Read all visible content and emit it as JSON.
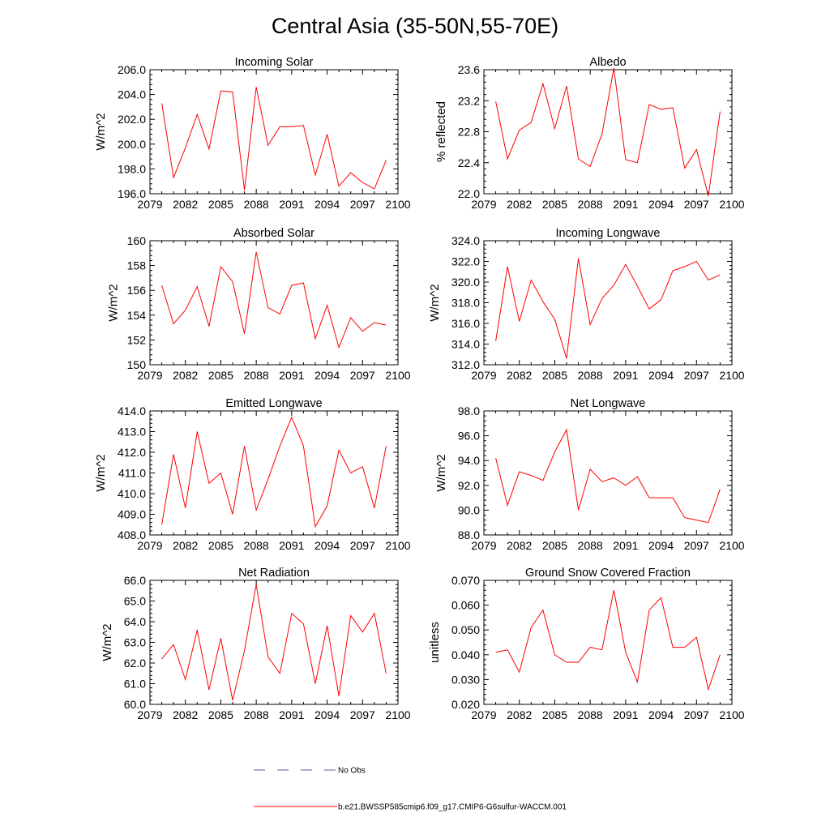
{
  "title": "Central Asia (35-50N,55-70E)",
  "legend": [
    {
      "label": "No Obs",
      "color": "#5a5aa0",
      "dash": true
    },
    {
      "label": "b.e21.BWSSP585cmip6.f09_g17.CMIP6-G6sulfur-WACCM.001",
      "color": "#ff0000",
      "dash": false
    }
  ],
  "chart_data": [
    {
      "type": "line",
      "title": "Incoming Solar",
      "ylabel": "W/m^2",
      "xlim": [
        2079,
        2100
      ],
      "xticks": [
        "2079",
        "2082",
        "2085",
        "2088",
        "2091",
        "2094",
        "2097",
        "2100"
      ],
      "ylim": [
        196.0,
        206.0
      ],
      "yticks": [
        "196.0",
        "198.0",
        "200.0",
        "202.0",
        "204.0",
        "206.0"
      ],
      "series": [
        {
          "color": "#ff0000",
          "x": [
            2080,
            2081,
            2082,
            2083,
            2084,
            2085,
            2086,
            2087,
            2088,
            2089,
            2090,
            2091,
            2092,
            2093,
            2094,
            2095,
            2096,
            2097,
            2098,
            2099
          ],
          "y": [
            203.3,
            197.3,
            199.7,
            202.4,
            199.6,
            204.3,
            204.2,
            196.3,
            204.6,
            199.9,
            201.4,
            201.4,
            201.5,
            197.5,
            200.8,
            196.6,
            197.7,
            196.9,
            196.4,
            198.7
          ]
        }
      ]
    },
    {
      "type": "line",
      "title": "Albedo",
      "ylabel": "% reflected",
      "xlim": [
        2079,
        2100
      ],
      "xticks": [
        "2079",
        "2082",
        "2085",
        "2088",
        "2091",
        "2094",
        "2097",
        "2100"
      ],
      "ylim": [
        22.0,
        23.6
      ],
      "yticks": [
        "22.0",
        "22.4",
        "22.8",
        "23.2",
        "23.6"
      ],
      "series": [
        {
          "color": "#ff0000",
          "x": [
            2080,
            2081,
            2082,
            2083,
            2084,
            2085,
            2086,
            2087,
            2088,
            2089,
            2090,
            2091,
            2092,
            2093,
            2094,
            2095,
            2096,
            2097,
            2098,
            2099
          ],
          "y": [
            23.19,
            22.45,
            22.82,
            22.92,
            23.42,
            22.84,
            23.39,
            22.45,
            22.35,
            22.77,
            23.62,
            22.44,
            22.4,
            23.15,
            23.09,
            23.11,
            22.33,
            22.57,
            21.97,
            23.06
          ]
        }
      ]
    },
    {
      "type": "line",
      "title": "Absorbed Solar",
      "ylabel": "W/m^2",
      "xlim": [
        2079,
        2100
      ],
      "xticks": [
        "2079",
        "2082",
        "2085",
        "2088",
        "2091",
        "2094",
        "2097",
        "2100"
      ],
      "ylim": [
        150,
        160
      ],
      "yticks": [
        "150",
        "152",
        "154",
        "156",
        "158",
        "160"
      ],
      "series": [
        {
          "color": "#ff0000",
          "x": [
            2080,
            2081,
            2082,
            2083,
            2084,
            2085,
            2086,
            2087,
            2088,
            2089,
            2090,
            2091,
            2092,
            2093,
            2094,
            2095,
            2096,
            2097,
            2098,
            2099
          ],
          "y": [
            156.4,
            153.3,
            154.4,
            156.3,
            153.1,
            157.9,
            156.7,
            152.5,
            159.1,
            154.6,
            154.1,
            156.4,
            156.6,
            152.1,
            154.8,
            151.4,
            153.8,
            152.7,
            153.4,
            153.2
          ]
        }
      ]
    },
    {
      "type": "line",
      "title": "Incoming Longwave",
      "ylabel": "W/m^2",
      "xlim": [
        2079,
        2100
      ],
      "xticks": [
        "2079",
        "2082",
        "2085",
        "2088",
        "2091",
        "2094",
        "2097",
        "2100"
      ],
      "ylim": [
        312.0,
        324.0
      ],
      "yticks": [
        "312.0",
        "314.0",
        "316.0",
        "318.0",
        "320.0",
        "322.0",
        "324.0"
      ],
      "series": [
        {
          "color": "#ff0000",
          "x": [
            2080,
            2081,
            2082,
            2083,
            2084,
            2085,
            2086,
            2087,
            2088,
            2089,
            2090,
            2091,
            2092,
            2093,
            2094,
            2095,
            2096,
            2097,
            2098,
            2099
          ],
          "y": [
            314.3,
            321.5,
            316.2,
            320.2,
            318.1,
            316.4,
            312.6,
            322.3,
            315.9,
            318.4,
            319.7,
            321.7,
            319.6,
            317.4,
            318.3,
            321.1,
            321.5,
            322.0,
            320.2,
            320.7
          ]
        }
      ]
    },
    {
      "type": "line",
      "title": "Emitted Longwave",
      "ylabel": "W/m^2",
      "xlim": [
        2079,
        2100
      ],
      "xticks": [
        "2079",
        "2082",
        "2085",
        "2088",
        "2091",
        "2094",
        "2097",
        "2100"
      ],
      "ylim": [
        408.0,
        414.0
      ],
      "yticks": [
        "408.0",
        "409.0",
        "410.0",
        "411.0",
        "412.0",
        "413.0",
        "414.0"
      ],
      "series": [
        {
          "color": "#ff0000",
          "x": [
            2080,
            2081,
            2082,
            2083,
            2084,
            2085,
            2086,
            2087,
            2088,
            2089,
            2090,
            2091,
            2092,
            2093,
            2094,
            2095,
            2096,
            2097,
            2098,
            2099
          ],
          "y": [
            408.5,
            411.9,
            409.3,
            413.0,
            410.5,
            411.0,
            409.0,
            412.3,
            409.2,
            410.7,
            412.3,
            413.7,
            412.3,
            408.4,
            409.4,
            412.1,
            411.0,
            411.3,
            409.3,
            412.3
          ]
        }
      ]
    },
    {
      "type": "line",
      "title": "Net Longwave",
      "ylabel": "W/m^2",
      "xlim": [
        2079,
        2100
      ],
      "xticks": [
        "2079",
        "2082",
        "2085",
        "2088",
        "2091",
        "2094",
        "2097",
        "2100"
      ],
      "ylim": [
        88.0,
        98.0
      ],
      "yticks": [
        "88.0",
        "90.0",
        "92.0",
        "94.0",
        "96.0",
        "98.0"
      ],
      "series": [
        {
          "color": "#ff0000",
          "x": [
            2080,
            2081,
            2082,
            2083,
            2084,
            2085,
            2086,
            2087,
            2088,
            2089,
            2090,
            2091,
            2092,
            2093,
            2094,
            2095,
            2096,
            2097,
            2098,
            2099
          ],
          "y": [
            94.2,
            90.4,
            93.1,
            92.8,
            92.4,
            94.7,
            96.5,
            90.0,
            93.3,
            92.3,
            92.6,
            92.0,
            92.7,
            91.0,
            91.0,
            91.0,
            89.4,
            89.2,
            89.0,
            91.7
          ]
        }
      ]
    },
    {
      "type": "line",
      "title": "Net Radiation",
      "ylabel": "W/m^2",
      "xlim": [
        2079,
        2100
      ],
      "xticks": [
        "2079",
        "2082",
        "2085",
        "2088",
        "2091",
        "2094",
        "2097",
        "2100"
      ],
      "ylim": [
        60.0,
        66.0
      ],
      "yticks": [
        "60.0",
        "61.0",
        "62.0",
        "63.0",
        "64.0",
        "65.0",
        "66.0"
      ],
      "series": [
        {
          "color": "#ff0000",
          "x": [
            2080,
            2081,
            2082,
            2083,
            2084,
            2085,
            2086,
            2087,
            2088,
            2089,
            2090,
            2091,
            2092,
            2093,
            2094,
            2095,
            2096,
            2097,
            2098,
            2099
          ],
          "y": [
            62.2,
            62.9,
            61.2,
            63.6,
            60.7,
            63.2,
            60.2,
            62.6,
            65.8,
            62.3,
            61.5,
            64.4,
            63.9,
            61.0,
            63.8,
            60.4,
            64.3,
            63.5,
            64.4,
            61.5
          ]
        }
      ]
    },
    {
      "type": "line",
      "title": "Ground Snow Covered Fraction",
      "ylabel": "unitless",
      "xlim": [
        2079,
        2100
      ],
      "xticks": [
        "2079",
        "2082",
        "2085",
        "2088",
        "2091",
        "2094",
        "2097",
        "2100"
      ],
      "ylim": [
        0.02,
        0.07
      ],
      "yticks": [
        "0.020",
        "0.030",
        "0.040",
        "0.050",
        "0.060",
        "0.070"
      ],
      "series": [
        {
          "color": "#ff0000",
          "x": [
            2080,
            2081,
            2082,
            2083,
            2084,
            2085,
            2086,
            2087,
            2088,
            2089,
            2090,
            2091,
            2092,
            2093,
            2094,
            2095,
            2096,
            2097,
            2098,
            2099
          ],
          "y": [
            0.041,
            0.042,
            0.033,
            0.051,
            0.058,
            0.04,
            0.037,
            0.037,
            0.043,
            0.042,
            0.066,
            0.041,
            0.029,
            0.058,
            0.063,
            0.043,
            0.043,
            0.047,
            0.026,
            0.04
          ]
        }
      ]
    }
  ]
}
